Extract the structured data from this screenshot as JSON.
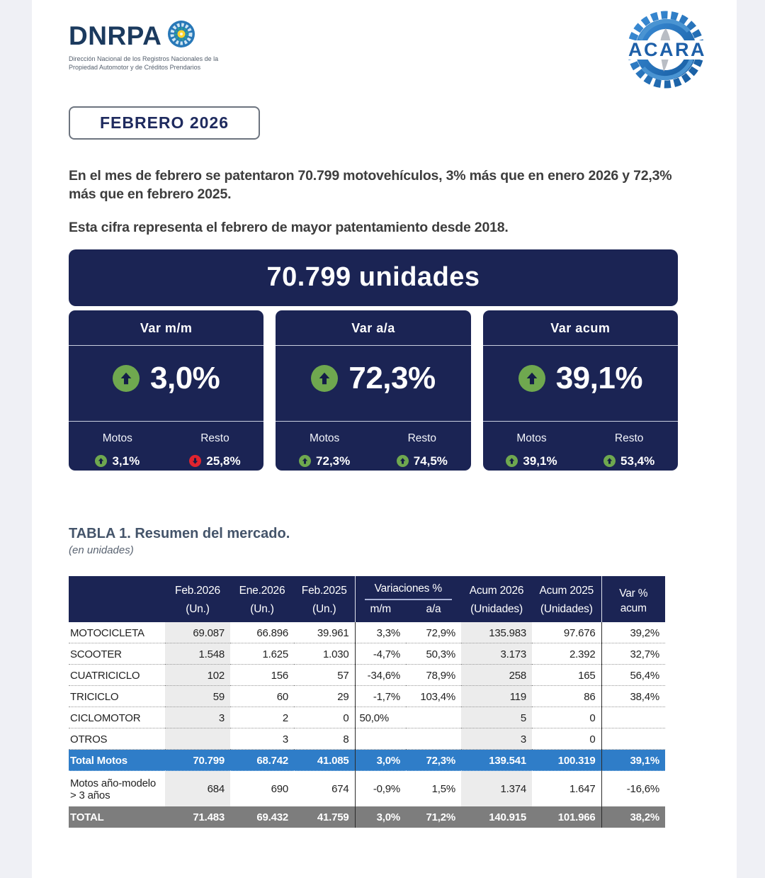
{
  "colors": {
    "navy": "#1b2454",
    "total_motos_row_blue": "#2f7dc8",
    "total_row_gray": "#7d7d7d",
    "trend_up_green": "#6fa84f",
    "trend_down_red": "#e0242f",
    "viewer_margin_gray": "#eff0f5",
    "shaded_column_gray": "#ececec"
  },
  "header": {
    "dnrpa": {
      "title": "DNRPA",
      "subtitle": "Dirección Nacional de los Registros Nacionales de la Propiedad Automotor y de Créditos Prendarios"
    },
    "acara": {
      "title": "ACARA"
    }
  },
  "period_badge": "FEBRERO 2026",
  "intro": {
    "paragraph1": "En el mes de febrero se patentaron 70.799 motovehículos, 3% más que en enero 2026 y 72,3% más que en febrero 2025.",
    "paragraph2": "Esta cifra representa el febrero de mayor patentamiento desde 2018."
  },
  "banner": {
    "text": "70.799 unidades"
  },
  "cards": [
    {
      "title": "Var m/m",
      "value": "3,0%",
      "trend": "up",
      "motos": {
        "label": "Motos",
        "value": "3,1%",
        "trend": "up"
      },
      "resto": {
        "label": "Resto",
        "value": "25,8%",
        "trend": "down"
      }
    },
    {
      "title": "Var a/a",
      "value": "72,3%",
      "trend": "up",
      "motos": {
        "label": "Motos",
        "value": "72,3%",
        "trend": "up"
      },
      "resto": {
        "label": "Resto",
        "value": "74,5%",
        "trend": "up"
      }
    },
    {
      "title": "Var acum",
      "value": "39,1%",
      "trend": "up",
      "motos": {
        "label": "Motos",
        "value": "39,1%",
        "trend": "up"
      },
      "resto": {
        "label": "Resto",
        "value": "53,4%",
        "trend": "up"
      }
    }
  ],
  "table": {
    "title": "TABLA 1. Resumen del mercado.",
    "subtitle": "(en unidades)",
    "header": {
      "col_feb2026": "Feb.2026",
      "col_ene2026": "Ene.2026",
      "col_feb2025": "Feb.2025",
      "unit_un": "(Un.)",
      "group_variaciones": "Variaciones %",
      "col_mm": "m/m",
      "col_aa": "a/a",
      "col_acum2026": "Acum 2026",
      "col_acum2025": "Acum 2025",
      "unit_unidades": "(Unidades)",
      "col_var_line1": "Var %",
      "col_var_line2": "acum"
    },
    "rows": [
      {
        "label": "MOTOCICLETA",
        "values": [
          "69.087",
          "66.896",
          "39.961",
          "3,3%",
          "72,9%",
          "135.983",
          "97.676",
          "39,2%"
        ]
      },
      {
        "label": "SCOOTER",
        "values": [
          "1.548",
          "1.625",
          "1.030",
          "-4,7%",
          "50,3%",
          "3.173",
          "2.392",
          "32,7%"
        ]
      },
      {
        "label": "CUATRICICLO",
        "values": [
          "102",
          "156",
          "57",
          "-34,6%",
          "78,9%",
          "258",
          "165",
          "56,4%"
        ]
      },
      {
        "label": "TRICICLO",
        "values": [
          "59",
          "60",
          "29",
          "-1,7%",
          "103,4%",
          "119",
          "86",
          "38,4%"
        ]
      },
      {
        "label": "CICLOMOTOR",
        "values": [
          "3",
          "2",
          "0",
          {
            "v": "50,0%",
            "align": "left"
          },
          "",
          "5",
          "0",
          ""
        ]
      },
      {
        "label": "OTROS",
        "values": [
          "",
          "3",
          "8",
          "",
          "",
          "3",
          "0",
          ""
        ]
      },
      {
        "label": "Total Motos",
        "style": "row-blue",
        "values": [
          "70.799",
          "68.742",
          "41.085",
          "3,0%",
          "72,3%",
          "139.541",
          "100.319",
          "39,1%"
        ]
      },
      {
        "label": "Motos año-modelo > 3 años",
        "style": "row-tall",
        "values": [
          "684",
          "690",
          "674",
          "-0,9%",
          "1,5%",
          "1.374",
          "1.647",
          "-16,6%"
        ]
      },
      {
        "label": "TOTAL",
        "style": "row-gray",
        "values": [
          "71.483",
          "69.432",
          "41.759",
          "3,0%",
          "71,2%",
          "140.915",
          "101.966",
          "38,2%"
        ]
      }
    ]
  }
}
